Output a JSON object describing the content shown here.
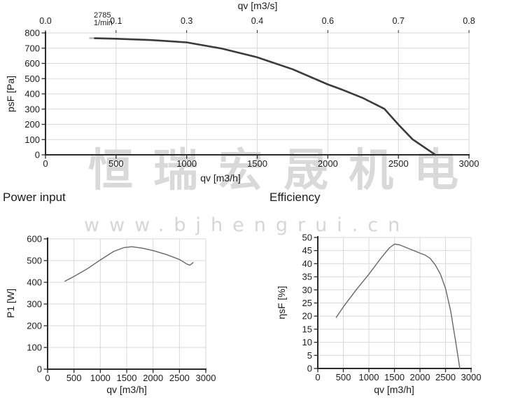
{
  "watermark": {
    "brand_cjk": "恒瑞宏晟机电",
    "brand_url": "www.bjhengrui.cn"
  },
  "style": {
    "curve_main": "#3b3b3b",
    "curve_small": "#686868",
    "lead_in": "#c0c0c0",
    "grid": "#d9d9d9",
    "axis": "#2b2b2b",
    "text": "#1c1c1c",
    "watermark": "#d9d9d9"
  },
  "chart_data": [
    {
      "id": "psf-curve",
      "type": "line",
      "title": "",
      "xlabel": "qv [m3/h]",
      "ylabel": "psF [Pa]",
      "x2label": "qv [m3/s]",
      "rpm_label": "2785",
      "rpm_unit": "1/min",
      "xlim": [
        0,
        3000
      ],
      "ylim": [
        0,
        800
      ],
      "xticks": [
        0,
        500,
        1000,
        1500,
        2000,
        2500,
        3000
      ],
      "xtick_labels": [
        "0",
        "500",
        "1000",
        "1500",
        "2000",
        "2500",
        "3000"
      ],
      "yticks": [
        0,
        100,
        200,
        300,
        400,
        500,
        600,
        700,
        800
      ],
      "ytick_labels": [
        "0",
        "100",
        "200",
        "300",
        "400",
        "500",
        "600",
        "700",
        "800"
      ],
      "top_tick_labels": [
        "0.0",
        "0.1",
        "0.3",
        "0.4",
        "0.6",
        "0.7",
        "0.8"
      ],
      "grid": true,
      "lead_in_points": [
        [
          315,
          766
        ],
        [
          355,
          765
        ]
      ],
      "points": [
        [
          350,
          765
        ],
        [
          500,
          762
        ],
        [
          750,
          753
        ],
        [
          1000,
          738
        ],
        [
          1250,
          697
        ],
        [
          1500,
          640
        ],
        [
          1750,
          562
        ],
        [
          2000,
          462
        ],
        [
          2100,
          428
        ],
        [
          2250,
          372
        ],
        [
          2400,
          302
        ],
        [
          2500,
          198
        ],
        [
          2600,
          102
        ],
        [
          2762,
          0
        ]
      ]
    },
    {
      "id": "power-curve",
      "type": "line",
      "title": "Power input",
      "xlabel": "qv [m3/h]",
      "ylabel": "P1 [W]",
      "xlim": [
        0,
        3000
      ],
      "ylim": [
        0,
        600
      ],
      "xticks": [
        0,
        500,
        1000,
        1500,
        2000,
        2500,
        3000
      ],
      "xtick_labels": [
        "0",
        "500",
        "1000",
        "1500",
        "2000",
        "2500",
        "3000"
      ],
      "yticks": [
        0,
        100,
        200,
        300,
        400,
        500,
        600
      ],
      "ytick_labels": [
        "0",
        "100",
        "200",
        "300",
        "400",
        "500",
        "600"
      ],
      "grid": true,
      "points": [
        [
          330,
          405
        ],
        [
          500,
          427
        ],
        [
          750,
          462
        ],
        [
          1000,
          503
        ],
        [
          1250,
          542
        ],
        [
          1450,
          560
        ],
        [
          1600,
          564
        ],
        [
          1800,
          557
        ],
        [
          2000,
          546
        ],
        [
          2250,
          528
        ],
        [
          2500,
          505
        ],
        [
          2650,
          483
        ],
        [
          2700,
          479
        ],
        [
          2760,
          491
        ]
      ]
    },
    {
      "id": "efficiency-curve",
      "type": "line",
      "title": "Efficiency",
      "xlabel": "qv [m3/h]",
      "ylabel": "ηsF [%]",
      "xlim": [
        0,
        3000
      ],
      "ylim": [
        0,
        50
      ],
      "xticks": [
        0,
        500,
        1000,
        1500,
        2000,
        2500,
        3000
      ],
      "xtick_labels": [
        "0",
        "500",
        "1000",
        "1500",
        "2000",
        "2500",
        "3000"
      ],
      "yticks": [
        0,
        5,
        10,
        15,
        20,
        25,
        30,
        35,
        40,
        45,
        50
      ],
      "ytick_labels": [
        "0",
        "5",
        "10",
        "15",
        "20",
        "25",
        "30",
        "35",
        "40",
        "45",
        "50"
      ],
      "grid": true,
      "points": [
        [
          360,
          19.5
        ],
        [
          500,
          23.5
        ],
        [
          750,
          30
        ],
        [
          1000,
          36
        ],
        [
          1250,
          42.5
        ],
        [
          1400,
          46
        ],
        [
          1500,
          47.5
        ],
        [
          1600,
          47.2
        ],
        [
          1750,
          46
        ],
        [
          1900,
          44.8
        ],
        [
          2000,
          44
        ],
        [
          2100,
          43.3
        ],
        [
          2200,
          42
        ],
        [
          2300,
          39.5
        ],
        [
          2400,
          36
        ],
        [
          2500,
          30.5
        ],
        [
          2600,
          22
        ],
        [
          2700,
          10
        ],
        [
          2780,
          0
        ]
      ]
    }
  ]
}
